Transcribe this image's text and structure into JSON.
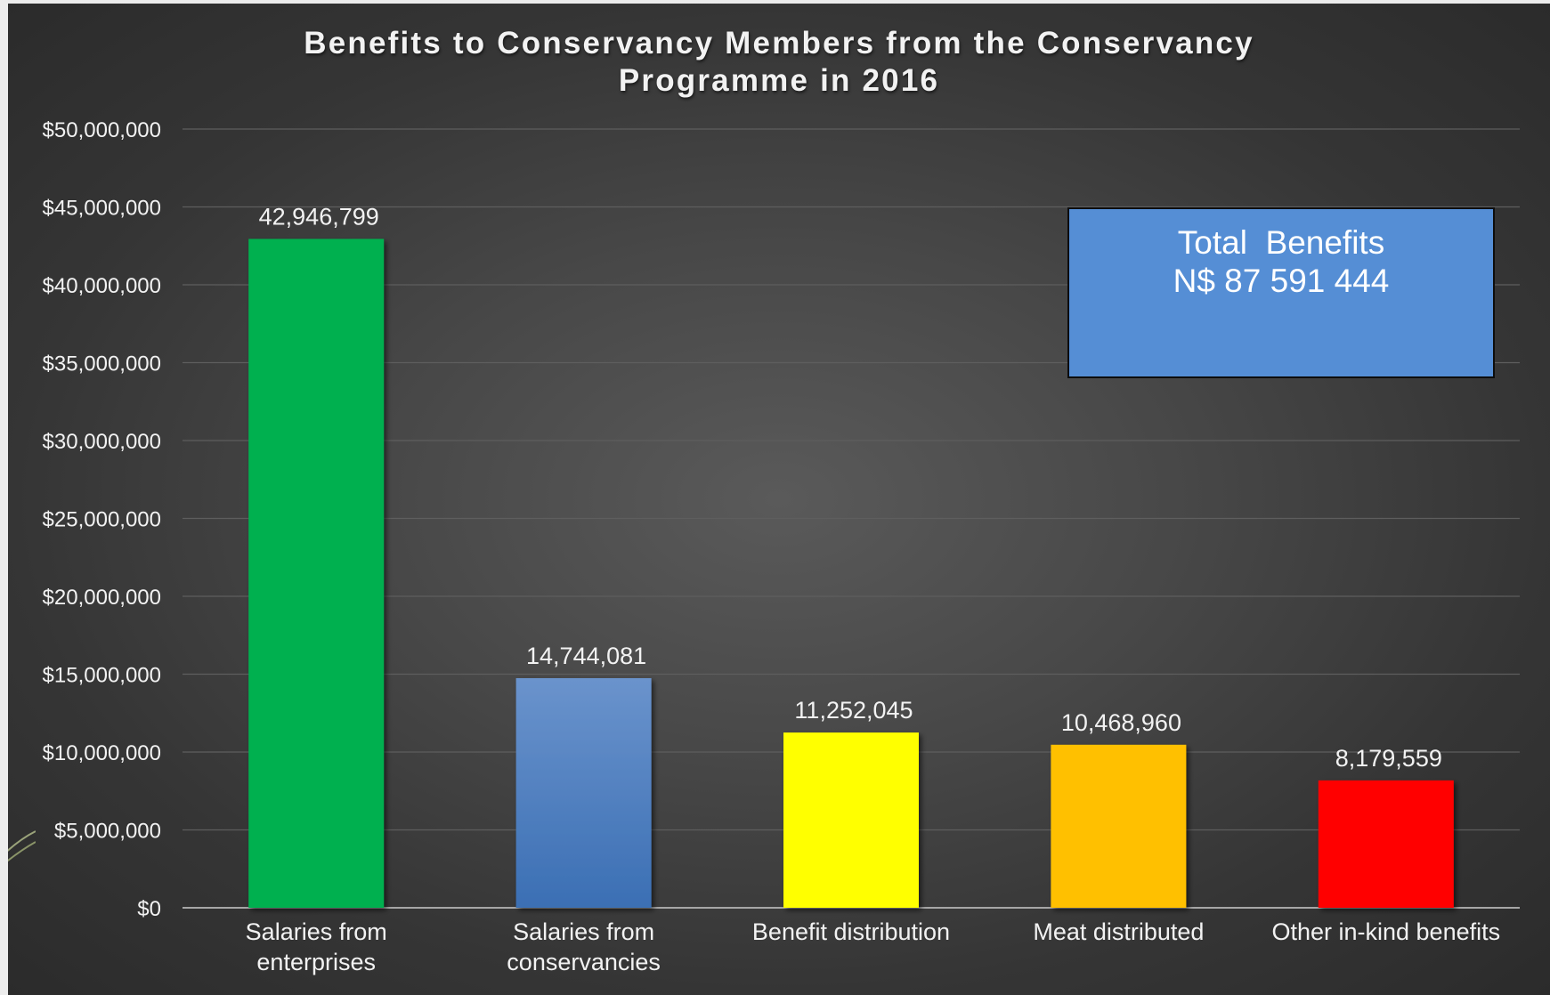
{
  "colors": {
    "slide_background": "#3f3f3f",
    "grid": "#595959",
    "text": "#f2f2f2",
    "total_box": "#558ed5"
  },
  "total_box": {
    "line1": "Total  Benefits",
    "line2": "N$ 87 591 444"
  },
  "chart_data": {
    "type": "bar",
    "title": "Benefits  to Conservancy Members from the Conservancy Programme in 2016",
    "title_lines": [
      "Benefits  to Conservancy Members from the Conservancy",
      "Programme in 2016"
    ],
    "categories": [
      [
        "Salaries from",
        "enterprises"
      ],
      [
        "Salaries from",
        "conservancies"
      ],
      [
        "Benefit distribution"
      ],
      [
        "Meat distributed"
      ],
      [
        "Other in-kind benefits"
      ]
    ],
    "values": [
      42946799,
      14744081,
      11252045,
      10468960,
      8179559
    ],
    "data_labels": [
      "42,946,799",
      "14,744,081",
      "11,252,045",
      "10,468,960",
      "8,179,559"
    ],
    "bar_colors": [
      "#00b050",
      "#4a7ebb",
      "#ffff00",
      "#ffc000",
      "#ff0000"
    ],
    "ylim": [
      0,
      50000000
    ],
    "yticks": [
      0,
      5000000,
      10000000,
      15000000,
      20000000,
      25000000,
      30000000,
      35000000,
      40000000,
      45000000,
      50000000
    ],
    "ytick_labels": [
      "$0",
      "$5,000,000",
      "$10,000,000",
      "$15,000,000",
      "$20,000,000",
      "$25,000,000",
      "$30,000,000",
      "$35,000,000",
      "$40,000,000",
      "$45,000,000",
      "$50,000,000"
    ],
    "xlabel": "",
    "ylabel": "",
    "grid": true,
    "legend": false
  }
}
